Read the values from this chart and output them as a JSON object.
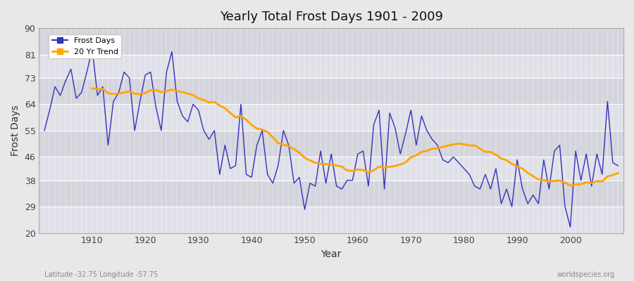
{
  "title": "Yearly Total Frost Days 1901 - 2009",
  "xlabel": "Year",
  "ylabel": "Frost Days",
  "subtitle": "Latitude -32.75 Longitude -57.75",
  "watermark": "worldspecies.org",
  "ylim": [
    20,
    90
  ],
  "yticks": [
    20,
    29,
    38,
    46,
    55,
    64,
    73,
    81,
    90
  ],
  "line_color": "#3333bb",
  "trend_color": "#FFA500",
  "fig_bg_color": "#e8e8e8",
  "plot_bg_color": "#e0e0e8",
  "grid_color": "#ffffff",
  "alt_band_color": "#d4d4dc",
  "years": [
    1901,
    1902,
    1903,
    1904,
    1905,
    1906,
    1907,
    1908,
    1909,
    1910,
    1911,
    1912,
    1913,
    1914,
    1915,
    1916,
    1917,
    1918,
    1919,
    1920,
    1921,
    1922,
    1923,
    1924,
    1925,
    1926,
    1927,
    1928,
    1929,
    1930,
    1931,
    1932,
    1933,
    1934,
    1935,
    1936,
    1937,
    1938,
    1939,
    1940,
    1941,
    1942,
    1943,
    1944,
    1945,
    1946,
    1947,
    1948,
    1949,
    1950,
    1951,
    1952,
    1953,
    1954,
    1955,
    1956,
    1957,
    1958,
    1959,
    1960,
    1961,
    1962,
    1963,
    1964,
    1965,
    1966,
    1967,
    1968,
    1969,
    1970,
    1971,
    1972,
    1973,
    1974,
    1975,
    1976,
    1977,
    1978,
    1979,
    1980,
    1981,
    1982,
    1983,
    1984,
    1985,
    1986,
    1987,
    1988,
    1989,
    1990,
    1991,
    1992,
    1993,
    1994,
    1995,
    1996,
    1997,
    1998,
    1999,
    2000,
    2001,
    2002,
    2003,
    2004,
    2005,
    2006,
    2007,
    2008,
    2009
  ],
  "frost_days": [
    55,
    62,
    70,
    67,
    72,
    76,
    66,
    68,
    75,
    83,
    67,
    70,
    50,
    65,
    68,
    75,
    73,
    55,
    65,
    74,
    75,
    63,
    55,
    75,
    82,
    65,
    60,
    58,
    64,
    62,
    55,
    52,
    55,
    40,
    50,
    42,
    43,
    64,
    40,
    39,
    50,
    55,
    40,
    37,
    43,
    55,
    50,
    37,
    39,
    28,
    37,
    36,
    48,
    37,
    47,
    36,
    35,
    38,
    38,
    47,
    48,
    36,
    57,
    62,
    35,
    61,
    56,
    47,
    54,
    62,
    50,
    60,
    55,
    52,
    50,
    45,
    44,
    46,
    44,
    42,
    40,
    36,
    35,
    40,
    35,
    42,
    30,
    35,
    29,
    45,
    35,
    30,
    33,
    30,
    45,
    35,
    48,
    50,
    29,
    22,
    48,
    38,
    47,
    36,
    47,
    40,
    65,
    44,
    43
  ],
  "legend_frost": "Frost Days",
  "legend_trend": "20 Yr Trend",
  "xticks": [
    1910,
    1920,
    1930,
    1940,
    1950,
    1960,
    1970,
    1980,
    1990,
    2000
  ],
  "xlim": [
    1900,
    2010
  ]
}
